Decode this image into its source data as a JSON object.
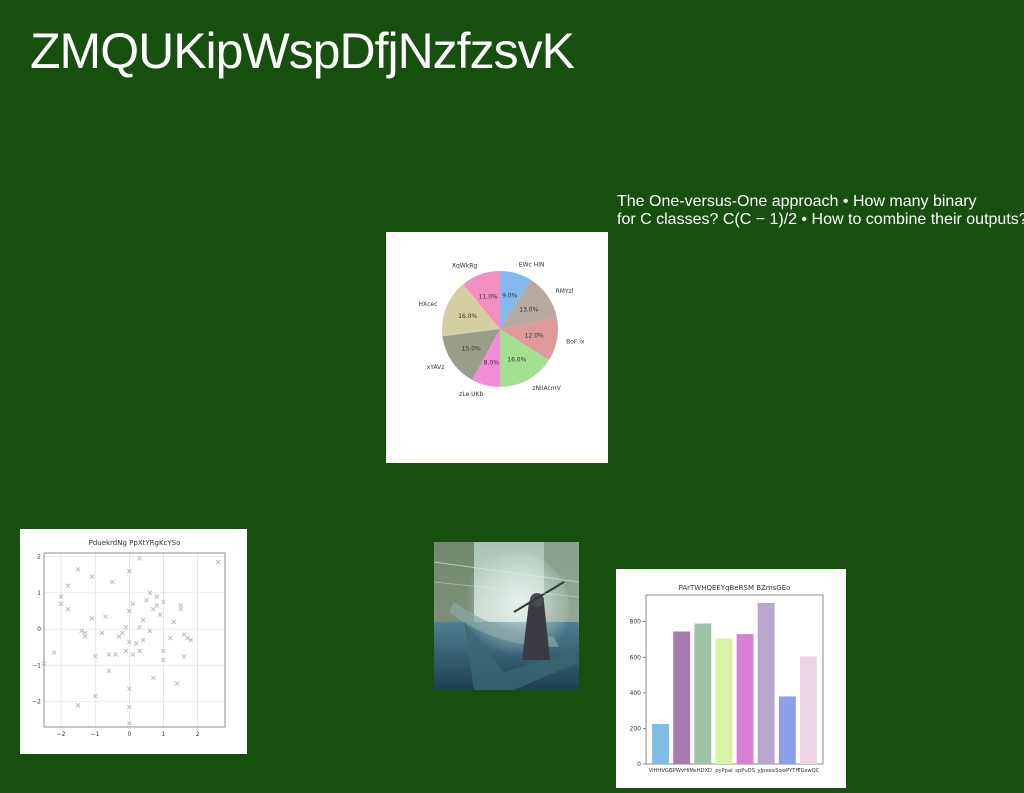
{
  "slide": {
    "title": "ZMQUKipWspDfjNzfzsvK",
    "body_lines": [
      "The One-versus-One approach • How many binary",
      "for C classes? C(C − 1)/2 • How to combine their outputs?"
    ]
  },
  "colors": {
    "background": "#174f0f",
    "text": "#ffffff"
  },
  "chart_data": [
    {
      "type": "pie",
      "title": "",
      "labels": [
        "EWc HIN",
        "RMYzl",
        "BoF ix",
        "zNIiAcmV",
        "zLe UKb",
        "xYAVz",
        "HXcec",
        "XqWkRg"
      ],
      "values": [
        9.0,
        13.0,
        12.0,
        16.0,
        8.0,
        15.0,
        16.0,
        11.0
      ],
      "value_labels": [
        "9.0%",
        "13.0%",
        "12.0%",
        "16.0%",
        "8.0%",
        "15.0%",
        "16.0%",
        "11.0%"
      ],
      "colors": [
        "#85b8ec",
        "#b5a9a0",
        "#de9a9b",
        "#a3e090",
        "#f58cd8",
        "#989e8a",
        "#d4cfa2",
        "#f58ec0"
      ],
      "start_angle_deg": 90,
      "direction": "clockwise"
    },
    {
      "type": "scatter",
      "title": "PduekrdNg PpXtYRgKcYSo",
      "xlabel": "",
      "ylabel": "",
      "xlim": [
        -2.5,
        2.8
      ],
      "ylim": [
        -2.7,
        2.1
      ],
      "xticks": [
        -2,
        -1,
        0,
        1,
        2
      ],
      "yticks": [
        -2,
        -1,
        0,
        1,
        2
      ],
      "xtick_labels": [
        "−2",
        "−1",
        "0",
        "1",
        "2"
      ],
      "ytick_labels": [
        "−2",
        "−1",
        "0",
        "1",
        "2"
      ],
      "grid": true,
      "marker": "x",
      "marker_color": "#b9b9b9",
      "points": [
        [
          -2.5,
          -0.95
        ],
        [
          -2.2,
          -0.65
        ],
        [
          -2.0,
          0.9
        ],
        [
          -2.0,
          0.7
        ],
        [
          -1.8,
          1.2
        ],
        [
          -1.8,
          0.55
        ],
        [
          -1.5,
          1.65
        ],
        [
          -1.4,
          -0.05
        ],
        [
          -1.3,
          -0.2
        ],
        [
          -1.3,
          -0.1
        ],
        [
          -1.1,
          1.45
        ],
        [
          -1.1,
          0.3
        ],
        [
          -1.0,
          -0.75
        ],
        [
          -1.0,
          -1.85
        ],
        [
          -1.5,
          -2.1
        ],
        [
          -0.8,
          -0.1
        ],
        [
          -0.7,
          0.35
        ],
        [
          -0.6,
          -0.7
        ],
        [
          -0.6,
          -1.15
        ],
        [
          -0.5,
          1.3
        ],
        [
          -0.4,
          -0.7
        ],
        [
          -0.3,
          -0.2
        ],
        [
          -0.2,
          -0.1
        ],
        [
          -0.1,
          -0.6
        ],
        [
          0.0,
          1.6
        ],
        [
          0.0,
          0.5
        ],
        [
          0.0,
          -0.35
        ],
        [
          0.0,
          -1.65
        ],
        [
          0.0,
          -2.15
        ],
        [
          0.0,
          -2.6
        ],
        [
          0.1,
          0.7
        ],
        [
          0.1,
          -0.7
        ],
        [
          0.2,
          -0.4
        ],
        [
          0.3,
          1.95
        ],
        [
          0.3,
          -0.6
        ],
        [
          0.4,
          0.25
        ],
        [
          0.4,
          -0.3
        ],
        [
          0.5,
          0.8
        ],
        [
          0.6,
          1.0
        ],
        [
          0.6,
          -0.05
        ],
        [
          0.7,
          0.55
        ],
        [
          0.8,
          0.9
        ],
        [
          0.8,
          0.65
        ],
        [
          0.9,
          0.4
        ],
        [
          1.0,
          0.75
        ],
        [
          0.7,
          -1.35
        ],
        [
          1.0,
          -0.6
        ],
        [
          1.0,
          -0.85
        ],
        [
          1.2,
          -0.25
        ],
        [
          1.3,
          0.2
        ],
        [
          1.4,
          -1.5
        ],
        [
          1.5,
          0.55
        ],
        [
          1.5,
          0.65
        ],
        [
          1.6,
          -0.15
        ],
        [
          1.6,
          -0.75
        ],
        [
          1.7,
          -0.25
        ],
        [
          1.8,
          -0.3
        ],
        [
          2.6,
          1.85
        ],
        [
          0.3,
          0.05
        ],
        [
          -0.1,
          0.05
        ]
      ]
    },
    {
      "type": "bar",
      "title": "PArTWHQEEYqBeRSM BZmsGEo",
      "xlabel": "",
      "ylabel": "",
      "categories": [
        "ViHHVGC",
        "SPWvHiM",
        "xHDXD",
        "pyPpal",
        "spPuDS",
        "yJpeea",
        "SqwPYTH",
        "TGswQC"
      ],
      "values": [
        225,
        745,
        790,
        705,
        730,
        905,
        380,
        605
      ],
      "colors": [
        "#7fbde6",
        "#a77bb2",
        "#9fc3a6",
        "#d8f4a4",
        "#d97fd4",
        "#b9a6cf",
        "#8ea0ea",
        "#eed3e4"
      ],
      "ylim": [
        0,
        950
      ],
      "yticks": [
        0,
        200,
        400,
        600,
        800
      ],
      "grid": false
    }
  ]
}
